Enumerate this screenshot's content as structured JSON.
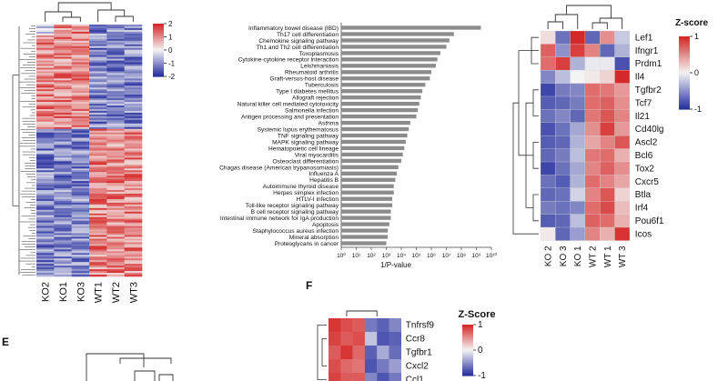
{
  "chart_data": [
    {
      "id": "heatmap-left",
      "type": "heatmap",
      "columns": [
        "KO2",
        "KO1",
        "KO3",
        "WT1",
        "WT2",
        "WT3"
      ],
      "colorbar": {
        "ticks": [
          "2",
          "1",
          "0",
          "-1",
          "-2"
        ]
      },
      "rows_approx": 150
    },
    {
      "id": "pathway-bar",
      "type": "bar",
      "orientation": "horizontal",
      "xlabel": "1/P-value",
      "xscale": "log",
      "xlim_exp": [
        0,
        10
      ],
      "xticks": [
        "10⁰",
        "10¹",
        "10²",
        "10³",
        "10⁴",
        "10⁵",
        "10⁶",
        "10⁷",
        "10⁸",
        "10⁹",
        "10¹⁰"
      ],
      "categories": [
        "Inflammatory bowel disease (IBD)",
        "Th17 cell differentiation",
        "Chemokine signaling pathway",
        "Th1 and Th2 cell differentiation",
        "Toxoplasmosis",
        "Cytokine-cytokine receptor interaction",
        "Leishmaniasis",
        "Rheumatoid arthritis",
        "Graft-versus-host disease",
        "Tuberculosis",
        "Type I diabetes mellitus",
        "Allograft rejection",
        "Natural killer cell mediated cytotoxicity",
        "Salmonella infection",
        "Antigen processing and presentation",
        "Asthma",
        "Systemic lupus erythematosus",
        "TNF signaling pathway",
        "MAPK signaling pathway",
        "Hematopoietic cell lineage",
        "Viral myocarditis",
        "Osteoclast differentiation",
        "Chagas disease (American trypanosomiasis)",
        "Influenza A",
        "Hepatitis B",
        "Autoimmune thyroid disease",
        "Herpes simplex infection",
        "HTLV-I infection",
        "Toll-like receptor signaling pathway",
        "B cell receptor signaling pathway",
        "Intestinal immune network for IgA production",
        "Apoptosis",
        "Staphylococcus aureus infection",
        "Mineral absorption",
        "Proteoglycans in cancer"
      ],
      "values_log10": [
        9.3,
        7.5,
        7.2,
        7.0,
        6.6,
        6.4,
        6.3,
        6.0,
        5.9,
        5.6,
        5.4,
        5.3,
        5.2,
        5.1,
        5.0,
        4.6,
        4.5,
        4.4,
        4.3,
        4.2,
        4.1,
        4.0,
        3.8,
        3.7,
        3.6,
        3.5,
        3.5,
        3.4,
        3.4,
        3.3,
        3.3,
        3.2,
        3.1,
        3.1,
        3.0
      ]
    },
    {
      "id": "heatmap-right",
      "type": "heatmap",
      "title": "Z-score",
      "columns": [
        "KO 2",
        "KO 3",
        "KO 1",
        "WT 2",
        "WT 1",
        "WT 3"
      ],
      "rows": [
        "Lef1",
        "Ifngr1",
        "Prdm1",
        "Il4",
        "Tgfbr2",
        "Tcf7",
        "Il21",
        "Cd40lg",
        "Ascl2",
        "Bcl6",
        "Tox2",
        "Cxcr5",
        "Btla",
        "Irf4",
        "Pou6f1",
        "Icos"
      ],
      "values": [
        [
          0.2,
          -1.2,
          1.8,
          -1.3,
          0.9,
          -0.4
        ],
        [
          1.3,
          -0.9,
          1.6,
          1.0,
          -1.3,
          -0.6
        ],
        [
          1.2,
          1.6,
          -0.6,
          -0.1,
          -0.1,
          -1.5
        ],
        [
          -1.0,
          -0.5,
          0.0,
          0.1,
          0.3,
          1.8
        ],
        [
          -1.6,
          -1.1,
          -1.0,
          1.2,
          1.1,
          0.8
        ],
        [
          -1.4,
          -1.3,
          -1.1,
          1.2,
          1.3,
          0.9
        ],
        [
          -1.2,
          -1.0,
          -1.3,
          1.1,
          1.4,
          1.0
        ],
        [
          -1.5,
          -1.2,
          -0.7,
          0.9,
          1.6,
          0.8
        ],
        [
          -1.4,
          -1.3,
          -0.6,
          0.7,
          1.0,
          1.4
        ],
        [
          -1.3,
          -1.1,
          -0.5,
          1.1,
          1.2,
          0.6
        ],
        [
          -1.6,
          -1.2,
          -0.7,
          1.0,
          1.3,
          0.9
        ],
        [
          -1.2,
          -1.4,
          -0.6,
          1.2,
          1.0,
          0.7
        ],
        [
          -1.3,
          -1.2,
          -0.3,
          1.0,
          1.4,
          0.3
        ],
        [
          -1.1,
          -1.2,
          -1.0,
          1.2,
          1.5,
          0.5
        ],
        [
          -1.4,
          -1.3,
          -0.5,
          1.3,
          1.2,
          0.6
        ],
        [
          0.1,
          -1.3,
          -0.8,
          1.0,
          0.6,
          1.7
        ]
      ],
      "colorbar": {
        "ticks": [
          "1",
          "0",
          "-1"
        ]
      }
    },
    {
      "id": "heatmap-f",
      "type": "heatmap",
      "title": "Z-Score",
      "rows": [
        "Tnfrsf9",
        "Ccr8",
        "Tgfbr1",
        "Cxcl2",
        "Ccl1"
      ],
      "values": [
        [
          1.5,
          1.3,
          1.2,
          -1.0,
          -1.2,
          -0.9
        ],
        [
          1.4,
          1.2,
          1.3,
          -0.4,
          -1.3,
          -1.2
        ],
        [
          1.2,
          1.5,
          1.1,
          -1.2,
          -0.6,
          -1.1
        ],
        [
          1.3,
          1.1,
          1.0,
          -1.3,
          -1.0,
          -0.7
        ],
        [
          1.4,
          1.2,
          1.2,
          -0.9,
          -1.3,
          -1.0
        ]
      ],
      "colorbar": {
        "ticks": [
          "1",
          "0",
          "-1"
        ]
      }
    }
  ],
  "panel_labels": {
    "e": "E",
    "f": "F"
  }
}
